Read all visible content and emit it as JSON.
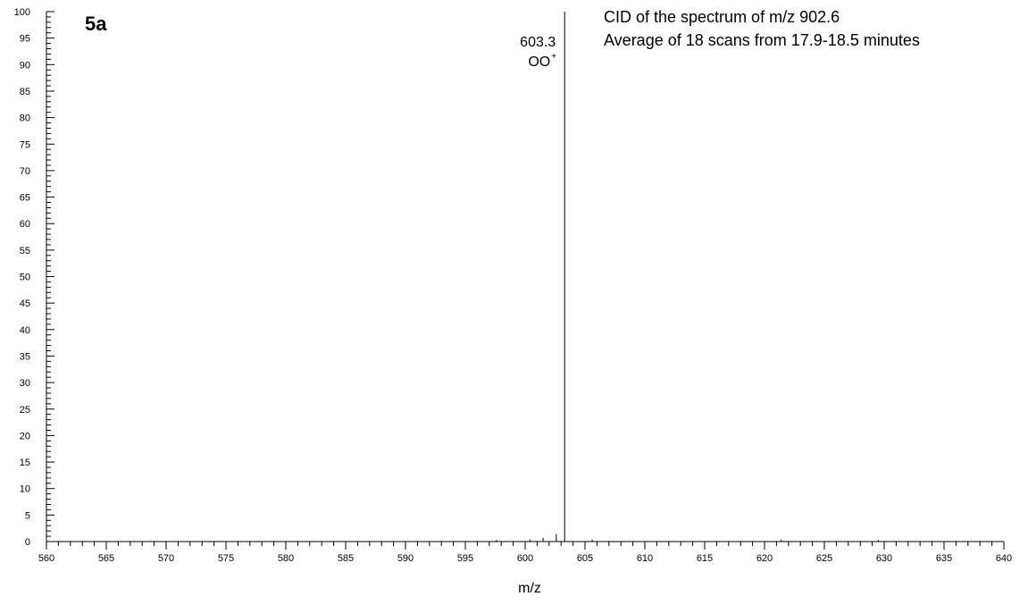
{
  "chart_data": {
    "type": "bar",
    "title": "CID of the spectrum of m/z 902.6",
    "subtitle": "Average of 18 scans from 17.9-18.5 minutes",
    "panel_label": "5a",
    "xlabel": "m/z",
    "ylabel": "",
    "xlim": [
      560,
      640
    ],
    "ylim": [
      0,
      100
    ],
    "x_major_step": 5,
    "x_minor_step": 1,
    "y_major_step": 5,
    "y_minor_step": 1,
    "grid": false,
    "legend": "none",
    "peaks": [
      {
        "mz": 597.6,
        "intensity": 0.3
      },
      {
        "mz": 600.4,
        "intensity": 0.4
      },
      {
        "mz": 601.5,
        "intensity": 0.7
      },
      {
        "mz": 602.6,
        "intensity": 1.4
      },
      {
        "mz": 603.3,
        "intensity": 100
      },
      {
        "mz": 605.6,
        "intensity": 0.4
      },
      {
        "mz": 621.4,
        "intensity": 0.4
      },
      {
        "mz": 629.5,
        "intensity": 0.3
      }
    ],
    "annotations": [
      {
        "mz": 603.3,
        "line1": "603.3",
        "line2_base": "OO",
        "line2_sup": "+"
      }
    ]
  }
}
